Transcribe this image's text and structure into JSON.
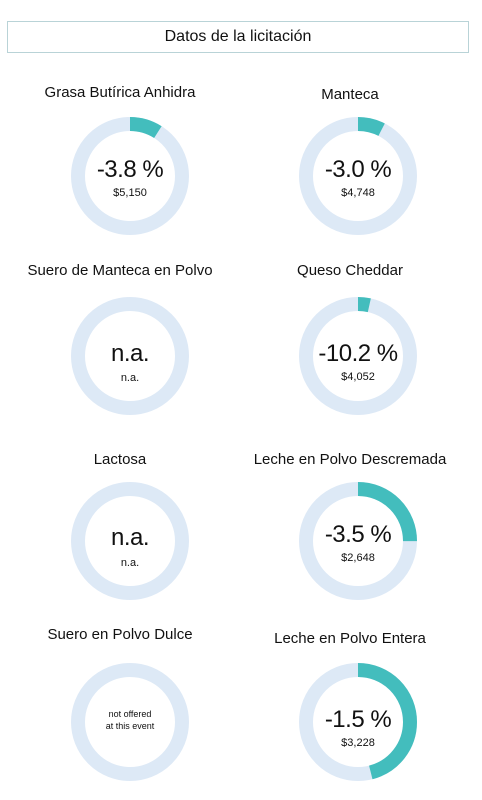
{
  "header": {
    "title": "Datos de la licitación"
  },
  "colors": {
    "ring": "#dde9f6",
    "fill": "#43bdbd",
    "border": "#b9d3d7"
  },
  "products": [
    {
      "name": "Grasa Butírica Anhidra",
      "change": "-3.8 %",
      "price": "$5,150",
      "fraction": 0.09
    },
    {
      "name": "Manteca",
      "change": "-3.0 %",
      "price": "$4,748",
      "fraction": 0.075
    },
    {
      "name": "Suero de Manteca en Polvo",
      "change": "n.a.",
      "price": "n.a.",
      "fraction": 0
    },
    {
      "name": "Queso Cheddar",
      "change": "-10.2 %",
      "price": "$4,052",
      "fraction": 0.035
    },
    {
      "name": "Lactosa",
      "change": "n.a.",
      "price": "n.a.",
      "fraction": 0
    },
    {
      "name": "Leche en Polvo Descremada",
      "change": "-3.5 %",
      "price": "$2,648",
      "fraction": 0.25
    },
    {
      "name": "Suero en Polvo Dulce",
      "change": "",
      "price": "",
      "note_line1": "not offered",
      "note_line2": "at this event",
      "fraction": 0
    },
    {
      "name": "Leche en Polvo Entera",
      "change": "-1.5 %",
      "price": "$3,228",
      "fraction": 0.46
    }
  ]
}
